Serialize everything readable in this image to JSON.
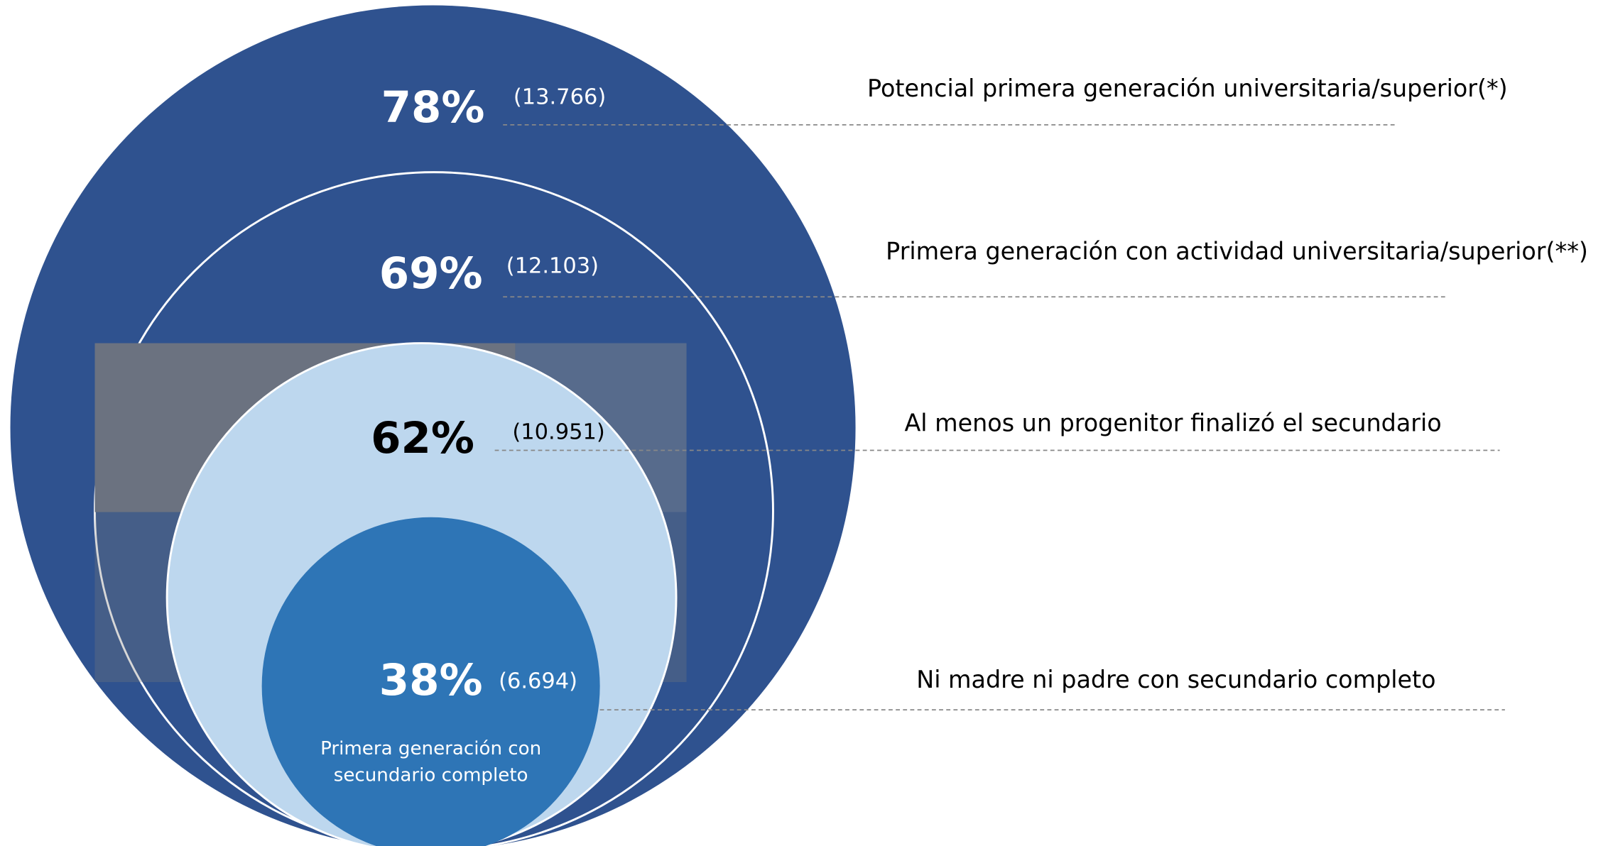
{
  "levels": [
    {
      "percent": "78%",
      "count": "(13.766)",
      "label": "Potencial primera generación universitaria/superior(*)"
    },
    {
      "percent": "69%",
      "count": "(12.103)",
      "label": "Primera generación con actividad universitaria/superior(**)"
    },
    {
      "percent": "62%",
      "count": "(10.951)",
      "label": "Al menos un progenitor finalizó el secundario"
    },
    {
      "percent": "38%",
      "count": "(6.694)",
      "label": "Ni madre ni padre con secundario completo"
    }
  ],
  "inner_label": {
    "line1": "Primera generación con",
    "line2": "secundario completo"
  }
}
